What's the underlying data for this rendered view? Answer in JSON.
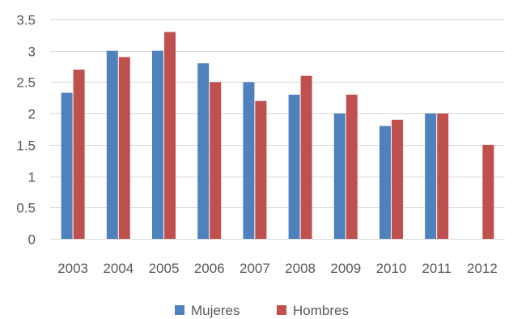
{
  "chart_data": {
    "type": "bar",
    "categories": [
      "2003",
      "2004",
      "2005",
      "2006",
      "2007",
      "2008",
      "2009",
      "2010",
      "2011",
      "2012"
    ],
    "series": [
      {
        "name": "Mujeres",
        "color": "#4f81bd",
        "values": [
          2.33,
          3.0,
          3.0,
          2.8,
          2.5,
          2.3,
          2.0,
          1.8,
          2.0,
          null
        ]
      },
      {
        "name": "Hombres",
        "color": "#c0504d",
        "values": [
          2.7,
          2.9,
          3.3,
          2.5,
          2.2,
          2.6,
          2.3,
          1.9,
          2.0,
          1.5
        ]
      }
    ],
    "y_ticks": [
      "0",
      "0.5",
      "1",
      "1.5",
      "2",
      "2.5",
      "3",
      "3.5"
    ],
    "ylim": [
      0,
      3.5
    ],
    "grid": true,
    "legend_position": "bottom",
    "title": "",
    "xlabel": "",
    "ylabel": ""
  }
}
